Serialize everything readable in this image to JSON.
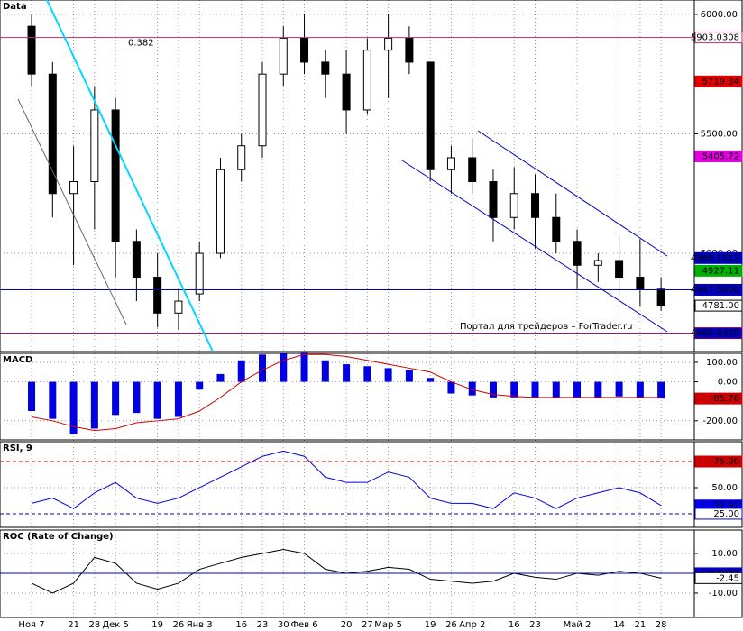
{
  "chart_data": [
    {
      "type": "candlestick",
      "title": "Data",
      "annotation": "0.382",
      "watermark": "Портал для трейдеров – ForTrader.ru",
      "categories": [
        "Ноя 7",
        null,
        "21",
        "28",
        "Дек 5",
        null,
        "19",
        "26",
        "Янв 3",
        null,
        "16",
        "23",
        "30",
        "Фев 6",
        null,
        "20",
        "27",
        "Мар 5",
        null,
        "19",
        "26",
        "Апр 2",
        null,
        "16",
        "23",
        null,
        "Май 2",
        null,
        "14",
        "21",
        "28"
      ],
      "open": [
        5950,
        5750,
        5250,
        5300,
        5600,
        5050,
        4900,
        4750,
        4830,
        5000,
        5350,
        5450,
        5750,
        5900,
        5800,
        5750,
        5600,
        5850,
        5900,
        5800,
        5350,
        5400,
        5300,
        5150,
        5250,
        5150,
        5050,
        4950,
        4970,
        4900,
        4850
      ],
      "high": [
        6000,
        5800,
        5450,
        5700,
        5650,
        5100,
        5000,
        4850,
        5050,
        5400,
        5500,
        5800,
        5950,
        6000,
        5850,
        5850,
        5900,
        6000,
        5950,
        5800,
        5450,
        5480,
        5350,
        5360,
        5330,
        5250,
        5100,
        5000,
        5080,
        5060,
        4900
      ],
      "low": [
        5700,
        5150,
        4950,
        5100,
        4900,
        4800,
        4690,
        4680,
        4800,
        4980,
        5300,
        5400,
        5700,
        5750,
        5650,
        5500,
        5580,
        5650,
        5750,
        5300,
        5250,
        5250,
        5050,
        5100,
        5020,
        5000,
        4850,
        4880,
        4820,
        4780,
        4760
      ],
      "close": [
        5750,
        5250,
        5300,
        5600,
        5050,
        4900,
        4750,
        4800,
        5000,
        5350,
        5450,
        5750,
        5900,
        5800,
        5750,
        5600,
        5850,
        5900,
        5800,
        5350,
        5400,
        5300,
        5150,
        5250,
        5150,
        5050,
        4950,
        4970,
        4900,
        4850,
        4781
      ],
      "ylim": [
        4589,
        6060
      ],
      "yticks": [
        {
          "value": 6000,
          "label": "6000.00"
        },
        {
          "value": 5500,
          "label": "5500.00"
        },
        {
          "value": 5000,
          "label": "5000.00"
        }
      ],
      "grid": true,
      "markers": [
        {
          "value": 5903.0308,
          "label": "5903.0308",
          "color": "#b03070",
          "line": "solid",
          "text_color": "#000000",
          "box": "#ffffff"
        },
        {
          "value": 5719.34,
          "label": "5719.34",
          "color": "#e00000",
          "text_color": "#ffffff",
          "box": "#e00000"
        },
        {
          "value": 5405.72,
          "label": "5405.72",
          "color": "#e000e0",
          "text_color": "#ffffff",
          "box": "#e000e0"
        },
        {
          "value": 4980.1512,
          "label": "4980.1512",
          "color": "#0000c0",
          "text_color": "#ffffff",
          "box": "#0000c0"
        },
        {
          "value": 4927.11,
          "label": "4927.11",
          "color": "#00b000",
          "text_color": "#ffffff",
          "box": "#00b000"
        },
        {
          "value": 4847.5,
          "label": "4847.5000",
          "color": "#0000c0",
          "line": "solid",
          "text_color": "#ffffff",
          "box": "#0000c0"
        },
        {
          "value": 4781,
          "label": "4781.00",
          "color": "#000000",
          "text_color": "#000000",
          "box": "#ffffff"
        },
        {
          "value": 4665.942,
          "label": "4665.9420",
          "color": "#800060",
          "line": "solid",
          "text_color": "#ffffff",
          "box": "#0000c0"
        }
      ]
    },
    {
      "type": "macd",
      "title": "MACD",
      "series": [
        {
          "kind": "bar",
          "color": "#0000e0",
          "values": [
            -150,
            -190,
            -270,
            -240,
            -170,
            -160,
            -190,
            -180,
            -40,
            40,
            110,
            140,
            145,
            150,
            110,
            90,
            80,
            70,
            60,
            20,
            -60,
            -70,
            -80,
            -80,
            -80,
            -80,
            -85,
            -80,
            -75,
            -80,
            -85.76
          ]
        },
        {
          "kind": "line",
          "color": "#cc0000",
          "values": [
            -180,
            -200,
            -230,
            -250,
            -240,
            -210,
            -200,
            -190,
            -150,
            -80,
            0,
            60,
            110,
            140,
            140,
            130,
            110,
            90,
            70,
            50,
            0,
            -40,
            -65,
            -75,
            -80,
            -80,
            -80,
            -80,
            -80,
            -80,
            -80
          ]
        }
      ],
      "ylim": [
        -298,
        146
      ],
      "yticks": [
        {
          "value": 100,
          "label": "100.00"
        },
        {
          "value": 0,
          "label": "0.00"
        },
        {
          "value": -200,
          "label": "-200.00"
        }
      ],
      "grid": true,
      "markers": [
        {
          "value": -85.76,
          "label": "-85.76",
          "color": "#cc0000",
          "text_color": "#ffffff",
          "box": "#cc0000"
        }
      ]
    },
    {
      "type": "line",
      "title": "RSI, 9",
      "series": [
        {
          "color": "#0000e0",
          "values": [
            35,
            40,
            30,
            45,
            55,
            40,
            35,
            40,
            50,
            60,
            70,
            80,
            85,
            80,
            60,
            55,
            55,
            65,
            60,
            40,
            35,
            35,
            30,
            45,
            40,
            30,
            40,
            45,
            50,
            45,
            32.92
          ]
        }
      ],
      "ylim": [
        12,
        94
      ],
      "yticks": [
        {
          "value": 50,
          "label": "50.00"
        }
      ],
      "grid": true,
      "markers": [
        {
          "value": 75,
          "label": "75.00",
          "color": "#cc0000",
          "line": "dashed",
          "text_color": "#ffffff",
          "box": "#cc0000"
        },
        {
          "value": 32.92,
          "label": "32.92",
          "color": "#0000e0",
          "text_color": "#ffffff",
          "box": "#0000e0"
        },
        {
          "value": 25,
          "label": "25.00",
          "color": "#0000c0",
          "line": "dashed",
          "text_color": "#000000",
          "box": "#ffffff"
        }
      ]
    },
    {
      "type": "line",
      "title": "ROC (Rate of Change)",
      "series": [
        {
          "color": "#000000",
          "values": [
            -5,
            -10,
            -5,
            8,
            5,
            -5,
            -8,
            -5,
            2,
            5,
            8,
            10,
            12,
            10,
            2,
            0,
            1,
            3,
            2,
            -3,
            -4,
            -5,
            -4,
            0,
            -2,
            -3,
            0,
            -1,
            1,
            0,
            -2.45
          ]
        }
      ],
      "ylim": [
        -22.3,
        21.8
      ],
      "yticks": [
        {
          "value": 10,
          "label": "10.00"
        },
        {
          "value": -10,
          "label": "-10.00"
        }
      ],
      "grid": true,
      "markers": [
        {
          "value": 0,
          "label": "0.0000",
          "color": "#0000c0",
          "line": "solid",
          "text_color": "#ffffff",
          "box": "#0000c0"
        },
        {
          "value": -2.45,
          "label": "-2.45",
          "color": "#000000",
          "text_color": "#000000",
          "box": "#ffffff"
        }
      ]
    }
  ]
}
